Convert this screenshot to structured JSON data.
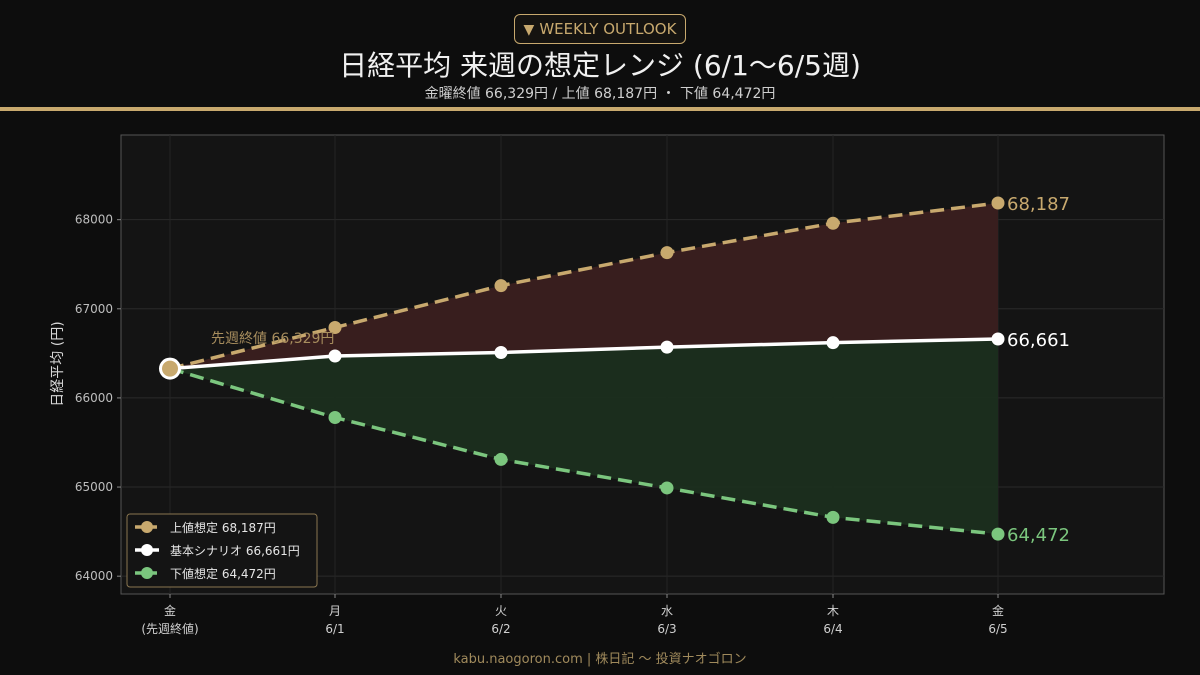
{
  "header": {
    "badge_icon": "triangle-down-icon",
    "badge_label": "WEEKLY OUTLOOK",
    "title": "日経平均 来週の想定レンジ (6/1〜6/5週)",
    "subtitle": "金曜終値 66,329円 / 上値 68,187円 ・ 下値 64,472円"
  },
  "footer": {
    "text": "kabu.naogoron.com | 株日記 〜 投資ナオゴロン"
  },
  "colors": {
    "accent": "#c8a96e",
    "upper": "#c8a96e",
    "base": "#ffffff",
    "lower": "#7bc67e",
    "upper_fill": "#3a1f1f",
    "lower_fill": "#1b2e1d",
    "plot_bg": "#141414"
  },
  "chart_data": {
    "type": "line",
    "ylabel": "日経平均 (円)",
    "xlabel": "",
    "ylim": [
      63800,
      68950
    ],
    "yticks": [
      64000,
      65000,
      66000,
      67000,
      68000
    ],
    "grid": true,
    "legend_position": "lower-left",
    "categories": [
      {
        "line1": "金",
        "line2": "(先週終値)"
      },
      {
        "line1": "月",
        "line2": "6/1"
      },
      {
        "line1": "火",
        "line2": "6/2"
      },
      {
        "line1": "水",
        "line2": "6/3"
      },
      {
        "line1": "木",
        "line2": "6/4"
      },
      {
        "line1": "金",
        "line2": "6/5"
      }
    ],
    "series": [
      {
        "key": "upper",
        "name": "上値想定 68,187円",
        "values": [
          66329,
          66790,
          67260,
          67630,
          67960,
          68187
        ],
        "end_label": "68,187"
      },
      {
        "key": "base",
        "name": "基本シナリオ 66,661円",
        "values": [
          66329,
          66470,
          66510,
          66570,
          66620,
          66661
        ],
        "end_label": "66,661"
      },
      {
        "key": "lower",
        "name": "下値想定 64,472円",
        "values": [
          66329,
          65780,
          65310,
          64990,
          64660,
          64472
        ],
        "end_label": "64,472"
      }
    ],
    "annotations": [
      {
        "text": "先週終値 66,329円"
      }
    ]
  }
}
